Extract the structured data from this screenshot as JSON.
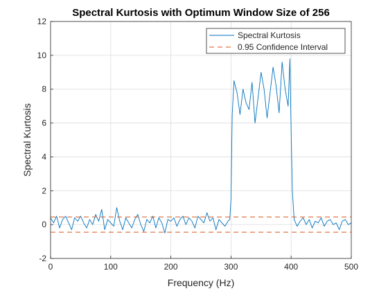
{
  "chart_data": {
    "type": "line",
    "title": "Spectral Kurtosis with Optimum Window Size of 256",
    "xlabel": "Frequency (Hz)",
    "ylabel": "Spectral Kurtosis",
    "xlim": [
      0,
      500
    ],
    "ylim": [
      -2,
      12
    ],
    "xticks": [
      "0",
      "100",
      "200",
      "300",
      "400",
      "500"
    ],
    "yticks": [
      "-2",
      "0",
      "2",
      "4",
      "6",
      "8",
      "10",
      "12"
    ],
    "grid": true,
    "legend_position": "top-right",
    "series": [
      {
        "name": "Spectral Kurtosis",
        "color": "#0072BD",
        "style": "solid",
        "x": [
          0,
          5,
          10,
          15,
          20,
          25,
          30,
          35,
          40,
          45,
          50,
          55,
          60,
          65,
          70,
          75,
          80,
          85,
          90,
          95,
          100,
          105,
          110,
          115,
          120,
          125,
          130,
          135,
          140,
          145,
          150,
          155,
          160,
          165,
          170,
          175,
          180,
          185,
          190,
          195,
          200,
          205,
          210,
          215,
          220,
          225,
          230,
          235,
          240,
          245,
          250,
          255,
          260,
          265,
          270,
          275,
          280,
          285,
          290,
          295,
          298,
          300,
          302,
          305,
          310,
          315,
          320,
          325,
          330,
          335,
          340,
          345,
          350,
          355,
          360,
          365,
          370,
          375,
          380,
          385,
          390,
          395,
          398,
          400,
          402,
          405,
          410,
          415,
          420,
          425,
          430,
          435,
          440,
          445,
          450,
          455,
          460,
          465,
          470,
          475,
          480,
          485,
          490,
          495,
          500
        ],
        "y": [
          0.4,
          0.1,
          0.5,
          -0.2,
          0.3,
          0.5,
          0.1,
          -0.3,
          0.4,
          0.2,
          0.5,
          0.1,
          -0.2,
          0.3,
          0.0,
          0.6,
          0.2,
          0.9,
          -0.3,
          0.3,
          0.1,
          -0.1,
          1.0,
          0.2,
          -0.3,
          0.4,
          0.1,
          -0.2,
          0.3,
          0.6,
          0.0,
          -0.4,
          0.3,
          0.1,
          0.5,
          -0.2,
          0.4,
          0.1,
          -0.5,
          0.3,
          0.2,
          0.4,
          -0.1,
          0.3,
          0.5,
          0.0,
          0.4,
          0.2,
          -0.2,
          0.5,
          0.3,
          0.1,
          0.7,
          0.2,
          0.4,
          -0.3,
          0.3,
          0.1,
          -0.1,
          0.2,
          0.3,
          1.5,
          6.5,
          8.5,
          7.8,
          6.5,
          8.0,
          7.2,
          6.8,
          8.4,
          6.0,
          7.5,
          9.0,
          8.0,
          6.3,
          7.8,
          9.3,
          8.2,
          6.6,
          9.6,
          8.0,
          7.0,
          9.8,
          5.5,
          2.0,
          0.3,
          -0.1,
          0.2,
          0.4,
          0.0,
          0.3,
          -0.2,
          0.2,
          0.1,
          0.4,
          -0.1,
          0.2,
          0.3,
          0.0,
          0.1,
          -0.3,
          0.2,
          0.3,
          0.0,
          0.1
        ]
      },
      {
        "name": "0.95 Confidence Interval",
        "color": "#D95319",
        "style": "dashed",
        "x": [
          0,
          500
        ],
        "y_upper": 0.45,
        "y_lower": -0.45
      }
    ]
  }
}
